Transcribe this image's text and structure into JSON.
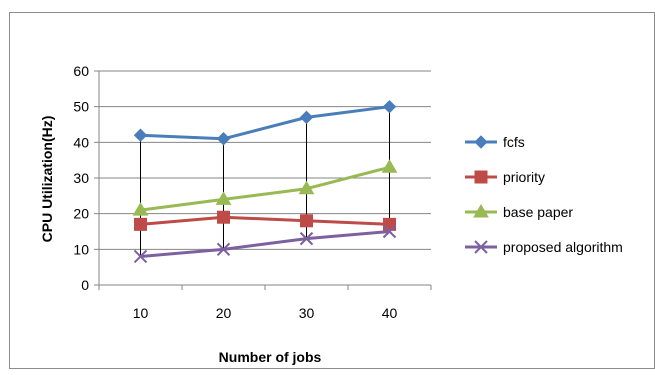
{
  "chart_data": {
    "type": "line",
    "title": "",
    "xlabel": "Number of jobs",
    "ylabel": "CPU Utilization(Hz)",
    "categories": [
      "10",
      "20",
      "30",
      "40"
    ],
    "ylim": [
      0,
      60
    ],
    "yticks": [
      "0",
      "10",
      "20",
      "30",
      "40",
      "50",
      "60"
    ],
    "grid": true,
    "high_low_lines": true,
    "legend_position": "right",
    "series": [
      {
        "name": "fcfs",
        "values": [
          42,
          41,
          47,
          50
        ],
        "color": "#4a7ebb",
        "marker": "diamond"
      },
      {
        "name": "priority",
        "values": [
          17,
          19,
          18,
          17
        ],
        "color": "#be4b48",
        "marker": "square"
      },
      {
        "name": "base paper",
        "values": [
          21,
          24,
          27,
          33
        ],
        "color": "#98b954",
        "marker": "triangle"
      },
      {
        "name": "proposed algorithm",
        "values": [
          8,
          10,
          13,
          15
        ],
        "color": "#7d60a0",
        "marker": "x"
      }
    ]
  }
}
